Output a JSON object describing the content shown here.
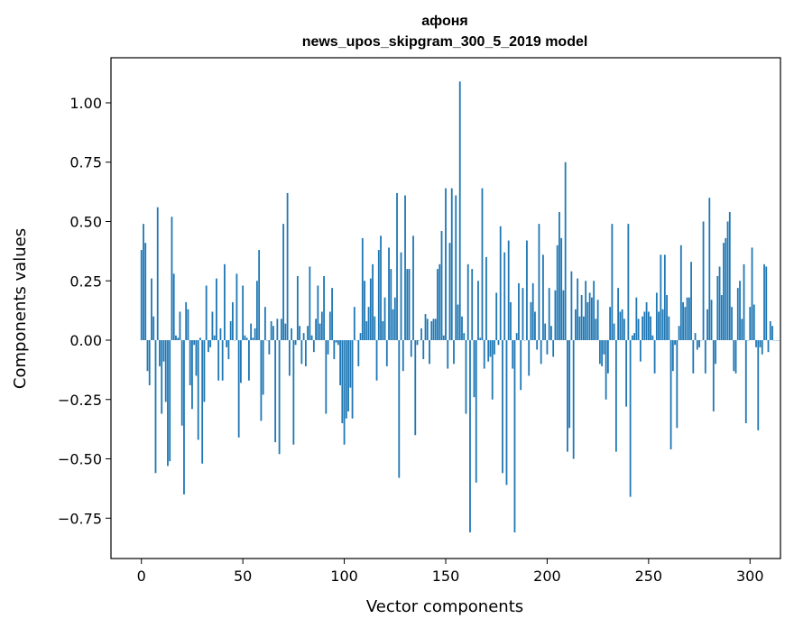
{
  "chart_data": {
    "type": "bar",
    "title": "афоня",
    "subtitle": "news_upos_skipgram_300_5_2019 model",
    "xlabel": "Vector components",
    "ylabel": "Components values",
    "xlim": [
      -15,
      315
    ],
    "ylim": [
      -0.92,
      1.19
    ],
    "xticks": [
      0,
      50,
      100,
      150,
      200,
      250,
      300
    ],
    "xtick_labels": [
      "0",
      "50",
      "100",
      "150",
      "200",
      "250",
      "300"
    ],
    "yticks": [
      -0.75,
      -0.5,
      -0.25,
      0.0,
      0.25,
      0.5,
      0.75,
      1.0
    ],
    "ytick_labels": [
      "−0.75",
      "−0.50",
      "−0.25",
      "0.00",
      "0.25",
      "0.50",
      "0.75",
      "1.00"
    ],
    "grid": false,
    "bar_color": "#1f77b4",
    "values": [
      0.38,
      0.49,
      0.41,
      -0.13,
      -0.19,
      0.26,
      0.1,
      -0.56,
      0.56,
      -0.11,
      -0.31,
      -0.09,
      -0.26,
      -0.53,
      -0.51,
      0.52,
      0.28,
      0.02,
      0.01,
      0.12,
      -0.36,
      -0.65,
      0.16,
      0.13,
      -0.19,
      -0.29,
      -0.02,
      -0.15,
      -0.42,
      0.01,
      -0.52,
      -0.26,
      0.23,
      -0.05,
      -0.03,
      0.12,
      0.02,
      0.26,
      -0.17,
      0.05,
      -0.17,
      0.32,
      -0.03,
      -0.08,
      0.08,
      0.16,
      0.0,
      0.28,
      -0.41,
      -0.18,
      0.23,
      0.02,
      0.01,
      -0.17,
      0.07,
      0.01,
      0.05,
      0.25,
      0.38,
      -0.34,
      -0.23,
      0.14,
      0.0,
      -0.06,
      0.08,
      0.06,
      -0.43,
      0.09,
      -0.48,
      0.09,
      0.49,
      0.07,
      0.62,
      -0.15,
      0.05,
      -0.44,
      -0.02,
      0.27,
      0.06,
      -0.1,
      0.03,
      -0.11,
      0.06,
      0.31,
      0.02,
      -0.05,
      0.09,
      0.23,
      0.07,
      0.12,
      0.27,
      -0.31,
      -0.06,
      0.12,
      0.22,
      -0.08,
      -0.01,
      -0.02,
      -0.19,
      -0.35,
      -0.44,
      -0.33,
      -0.3,
      -0.2,
      -0.33,
      0.14,
      0.0,
      -0.11,
      0.03,
      0.43,
      0.25,
      0.08,
      0.14,
      0.26,
      0.32,
      0.1,
      -0.17,
      0.38,
      0.44,
      0.08,
      0.18,
      -0.11,
      0.39,
      0.3,
      0.13,
      0.18,
      0.62,
      -0.58,
      0.37,
      -0.13,
      0.61,
      0.3,
      0.3,
      -0.07,
      0.44,
      -0.4,
      -0.02,
      0.0,
      0.05,
      -0.08,
      0.11,
      0.09,
      -0.1,
      0.08,
      0.09,
      0.09,
      0.3,
      0.32,
      0.46,
      0.02,
      0.64,
      -0.12,
      0.41,
      0.64,
      -0.1,
      0.61,
      0.15,
      1.09,
      0.1,
      0.03,
      -0.31,
      0.32,
      -0.81,
      0.3,
      -0.24,
      -0.6,
      0.25,
      0.01,
      0.64,
      -0.12,
      0.35,
      -0.09,
      -0.07,
      -0.25,
      -0.06,
      0.2,
      -0.02,
      0.48,
      -0.56,
      0.37,
      -0.61,
      0.42,
      0.16,
      -0.12,
      -0.81,
      0.03,
      0.24,
      -0.21,
      0.22,
      0.0,
      0.42,
      -0.15,
      0.16,
      0.24,
      0.12,
      -0.04,
      0.49,
      -0.1,
      0.36,
      0.07,
      -0.06,
      0.22,
      0.06,
      -0.07,
      0.21,
      0.4,
      0.54,
      0.43,
      0.21,
      0.75,
      -0.47,
      -0.37,
      0.29,
      -0.5,
      0.13,
      0.26,
      0.1,
      0.19,
      0.1,
      0.25,
      0.16,
      0.2,
      0.18,
      0.25,
      0.09,
      0.17,
      -0.1,
      -0.11,
      -0.06,
      -0.25,
      -0.14,
      0.14,
      0.49,
      0.07,
      -0.47,
      0.22,
      0.12,
      0.13,
      0.09,
      -0.28,
      0.49,
      -0.66,
      0.02,
      0.03,
      0.18,
      0.09,
      -0.09,
      0.1,
      0.12,
      0.16,
      0.12,
      0.1,
      0.02,
      -0.14,
      0.2,
      0.12,
      0.36,
      0.13,
      0.36,
      0.19,
      0.1,
      -0.46,
      -0.13,
      -0.02,
      -0.37,
      0.06,
      0.4,
      0.16,
      0.14,
      0.18,
      0.18,
      0.33,
      -0.14,
      0.03,
      -0.04,
      -0.03,
      0.0,
      0.5,
      -0.14,
      0.13,
      0.6,
      0.17,
      -0.3,
      -0.1,
      0.27,
      0.31,
      0.19,
      0.41,
      0.43,
      0.5,
      0.54,
      0.14,
      -0.13,
      -0.14,
      0.22,
      0.25,
      0.09,
      0.32,
      -0.35,
      0.0,
      0.14,
      0.39,
      0.15,
      -0.03,
      -0.38,
      -0.03,
      -0.06,
      0.32,
      0.31,
      -0.05,
      0.08,
      0.06,
      0.0,
      0.0,
      0.0
    ]
  }
}
